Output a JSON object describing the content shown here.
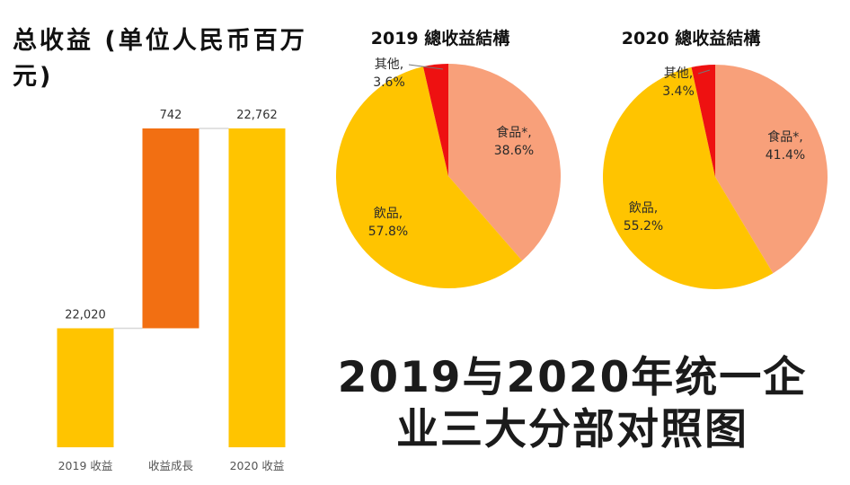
{
  "colors": {
    "gold": "#FFC400",
    "orange": "#F26F12",
    "salmon": "#F8A07A",
    "red": "#EE1111",
    "axis_text": "#555555",
    "title_text": "#111111"
  },
  "left_title": "总收益 (单位人民币百万元)",
  "main_title": "2019与2020年统一企业三大分部对照图",
  "chart_data": [
    {
      "type": "bar",
      "subtype": "waterfall",
      "categories": [
        "2019 收益",
        "收益成長",
        "2020 收益"
      ],
      "values": [
        22020,
        742,
        22762
      ],
      "value_labels": [
        "22,020",
        "742",
        "22,762"
      ]
    },
    {
      "type": "pie",
      "title": "2019 總收益結構",
      "slices": [
        {
          "name": "食品*,",
          "value": 38.6,
          "label": "38.6%",
          "color": "#F8A07A"
        },
        {
          "name": "飲品,",
          "value": 57.8,
          "label": "57.8%",
          "color": "#FFC400"
        },
        {
          "name": "其他,",
          "value": 3.6,
          "label": "3.6%",
          "color": "#EE1111"
        }
      ]
    },
    {
      "type": "pie",
      "title": "2020 總收益結構",
      "slices": [
        {
          "name": "食品*,",
          "value": 41.4,
          "label": "41.4%",
          "color": "#F8A07A"
        },
        {
          "name": "飲品,",
          "value": 55.2,
          "label": "55.2%",
          "color": "#FFC400"
        },
        {
          "name": "其他,",
          "value": 3.4,
          "label": "3.4%",
          "color": "#EE1111"
        }
      ]
    }
  ]
}
